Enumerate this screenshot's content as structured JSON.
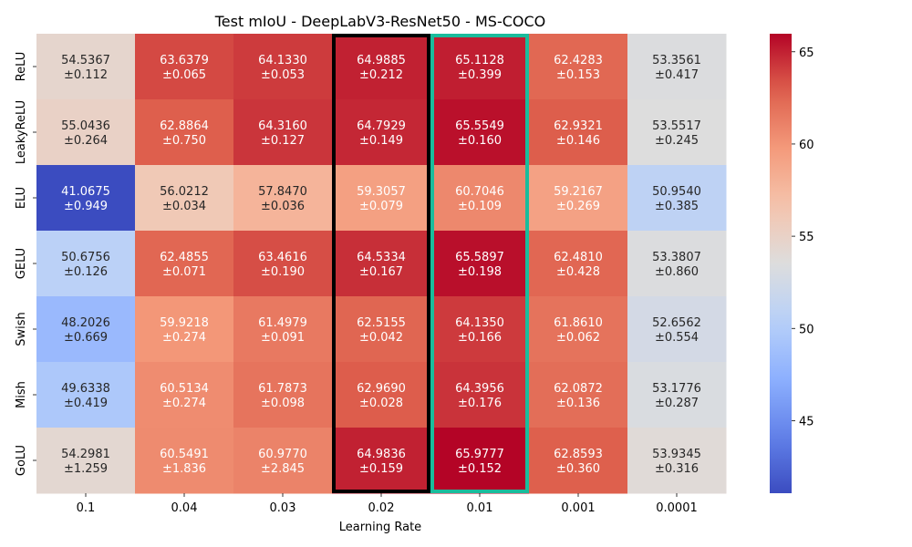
{
  "chart_data": {
    "type": "heatmap",
    "title": "Test mIoU - DeepLabV3-ResNet50 - MS-COCO",
    "xlabel": "Learning Rate",
    "ylabel": "",
    "x_categories": [
      "0.1",
      "0.04",
      "0.03",
      "0.02",
      "0.01",
      "0.001",
      "0.0001"
    ],
    "y_categories": [
      "ReLU",
      "LeakyReLU",
      "ELU",
      "GELU",
      "Swish",
      "Mish",
      "GoLU"
    ],
    "values": [
      [
        54.5367,
        63.6379,
        64.133,
        64.9885,
        65.1128,
        62.4283,
        53.3561
      ],
      [
        55.0436,
        62.8864,
        64.316,
        64.7929,
        65.5549,
        62.9321,
        53.5517
      ],
      [
        41.0675,
        56.0212,
        57.847,
        59.3057,
        60.7046,
        59.2167,
        50.954
      ],
      [
        50.6756,
        62.4855,
        63.4616,
        64.5334,
        65.5897,
        62.481,
        53.3807
      ],
      [
        48.2026,
        59.9218,
        61.4979,
        62.5155,
        64.135,
        61.861,
        52.6562
      ],
      [
        49.6338,
        60.5134,
        61.7873,
        62.969,
        64.3956,
        62.0872,
        53.1776
      ],
      [
        54.2981,
        60.5491,
        60.977,
        64.9836,
        65.9777,
        62.8593,
        53.9345
      ]
    ],
    "std": [
      [
        "±0.112",
        "±0.065",
        "±0.053",
        "±0.212",
        "±0.399",
        "±0.153",
        "±0.417"
      ],
      [
        "±0.264",
        "±0.750",
        "±0.127",
        "±0.149",
        "±0.160",
        "±0.146",
        "±0.245"
      ],
      [
        "±0.949",
        "±0.034",
        "±0.036",
        "±0.079",
        "±0.109",
        "±0.269",
        "±0.385"
      ],
      [
        "±0.126",
        "±0.071",
        "±0.190",
        "±0.167",
        "±0.198",
        "±0.428",
        "±0.860"
      ],
      [
        "±0.669",
        "±0.274",
        "±0.091",
        "±0.042",
        "±0.166",
        "±0.062",
        "±0.554"
      ],
      [
        "±0.419",
        "±0.274",
        "±0.098",
        "±0.028",
        "±0.176",
        "±0.136",
        "±0.287"
      ],
      [
        "±1.259",
        "±1.836",
        "±2.845",
        "±0.159",
        "±0.152",
        "±0.360",
        "±0.316"
      ]
    ],
    "value_labels": [
      [
        "54.5367",
        "63.6379",
        "64.1330",
        "64.9885",
        "65.1128",
        "62.4283",
        "53.3561"
      ],
      [
        "55.0436",
        "62.8864",
        "64.3160",
        "64.7929",
        "65.5549",
        "62.9321",
        "53.5517"
      ],
      [
        "41.0675",
        "56.0212",
        "57.8470",
        "59.3057",
        "60.7046",
        "59.2167",
        "50.9540"
      ],
      [
        "50.6756",
        "62.4855",
        "63.4616",
        "64.5334",
        "65.5897",
        "62.4810",
        "53.3807"
      ],
      [
        "48.2026",
        "59.9218",
        "61.4979",
        "62.5155",
        "64.1350",
        "61.8610",
        "52.6562"
      ],
      [
        "49.6338",
        "60.5134",
        "61.7873",
        "62.9690",
        "64.3956",
        "62.0872",
        "53.1776"
      ],
      [
        "54.2981",
        "60.5491",
        "60.9770",
        "64.9836",
        "65.9777",
        "62.8593",
        "53.9345"
      ]
    ],
    "colormap": "coolwarm",
    "vmin": 41.0675,
    "vmax": 65.9777,
    "colorbar_ticks": [
      45,
      50,
      55,
      60,
      65
    ],
    "highlighted_columns": [
      {
        "x": "0.02",
        "color": "#000000"
      },
      {
        "x": "0.01",
        "color": "#1abc9c"
      }
    ]
  }
}
